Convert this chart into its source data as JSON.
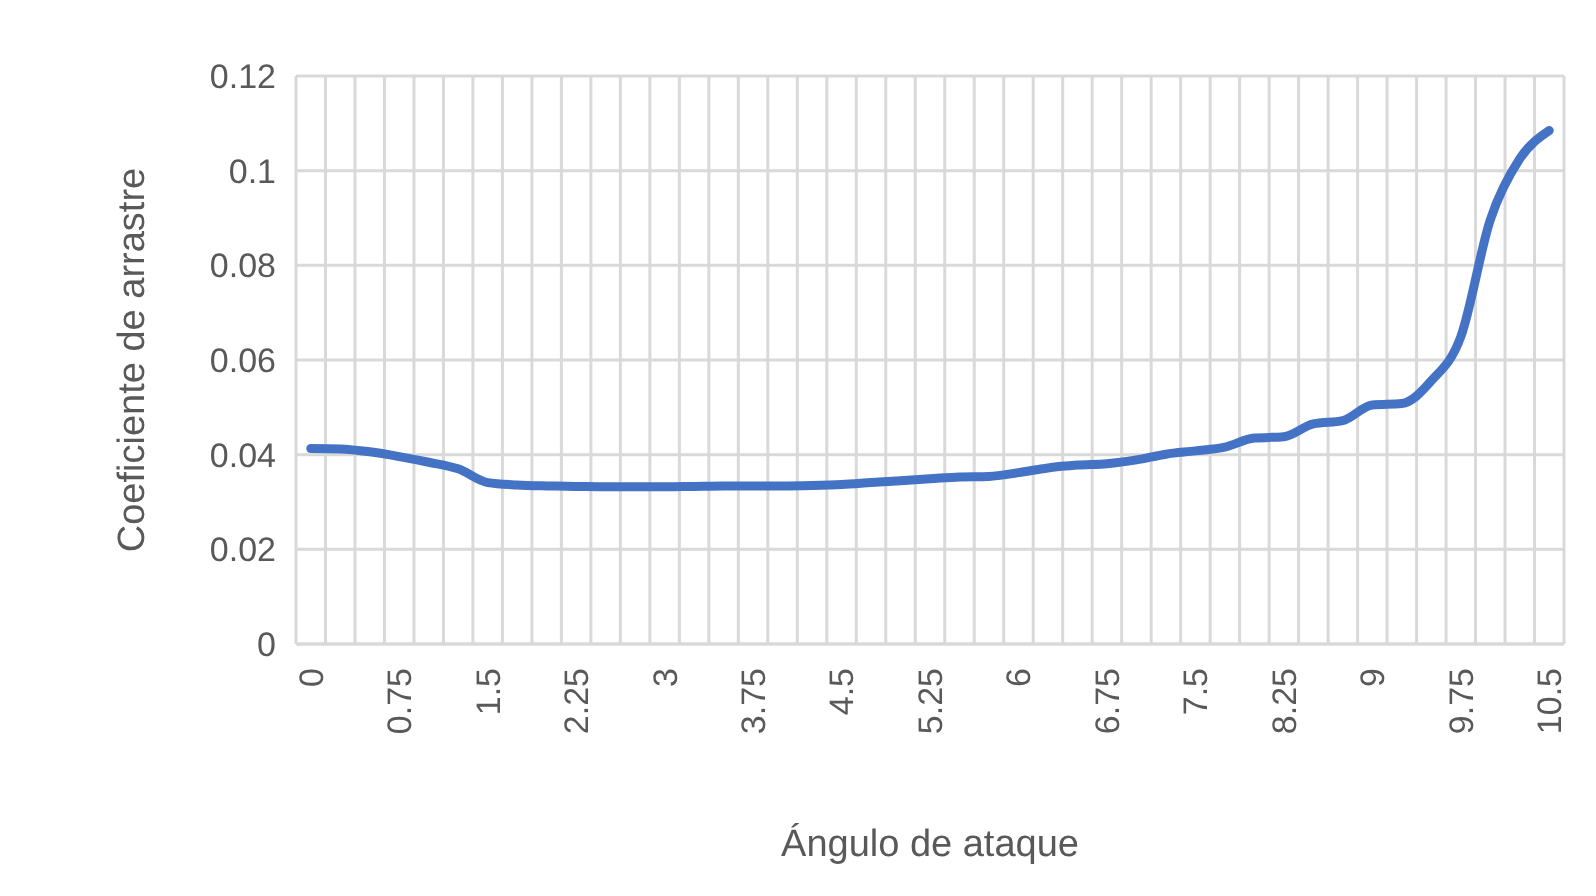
{
  "chart_data": {
    "type": "line",
    "xlabel": "Ángulo de ataque",
    "ylabel": "Coeficiente de arrastre",
    "categories": [
      "0",
      null,
      null,
      "0.75",
      null,
      null,
      "1.5",
      null,
      null,
      "2.25",
      null,
      null,
      "3",
      null,
      null,
      "3.75",
      null,
      null,
      "4.5",
      null,
      null,
      "5.25",
      null,
      null,
      "6",
      null,
      null,
      "6.75",
      null,
      null,
      "7.5",
      null,
      null,
      "8.25",
      null,
      null,
      "9",
      null,
      null,
      "9.75",
      null,
      null,
      "10.5"
    ],
    "series": [
      {
        "color": "#4472c4",
        "values": [
          0.0413,
          0.0412,
          0.0406,
          0.0396,
          0.0384,
          0.037,
          0.0341,
          0.0336,
          0.0334,
          0.0333,
          0.0332,
          0.0332,
          0.0332,
          0.0333,
          0.0334,
          0.0334,
          0.0334,
          0.0335,
          0.0337,
          0.0341,
          0.0345,
          0.0349,
          0.0353,
          0.0354,
          0.0362,
          0.0372,
          0.0378,
          0.0381,
          0.0389,
          0.0401,
          0.0408,
          0.0416,
          0.0435,
          0.0438,
          0.0465,
          0.0472,
          0.0505,
          0.0508,
          0.0556,
          0.0649,
          0.0896,
          0.1025,
          0.1085
        ]
      }
    ],
    "ylim": [
      0,
      0.12
    ],
    "yticks": [
      0,
      0.02,
      0.04,
      0.06,
      0.08,
      0.1,
      0.12
    ],
    "grid": true,
    "marker": "none",
    "line_style": "solid"
  }
}
